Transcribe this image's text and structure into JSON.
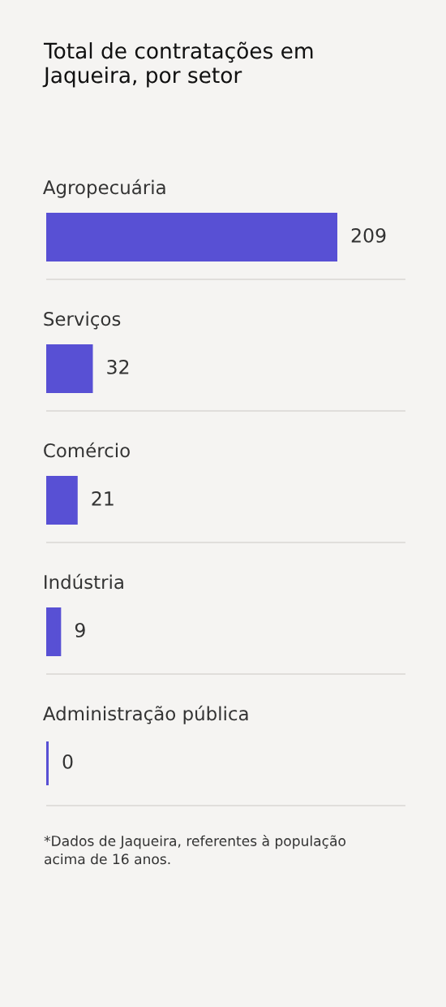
{
  "chart_data": {
    "type": "bar",
    "orientation": "horizontal",
    "title": "Total de contratações em\nJaqueira, por setor",
    "categories": [
      "Agropecuária",
      "Serviços",
      "Comércio",
      "Indústria",
      "Administração pública"
    ],
    "values": [
      209,
      32,
      21,
      9,
      0
    ],
    "color": "#5850d4",
    "data_labels": true,
    "grid": "y",
    "tick_labels": "y",
    "annotations": [
      "*Dados de Jaqueira, referentes à população\nacima de 16 anos."
    ]
  }
}
